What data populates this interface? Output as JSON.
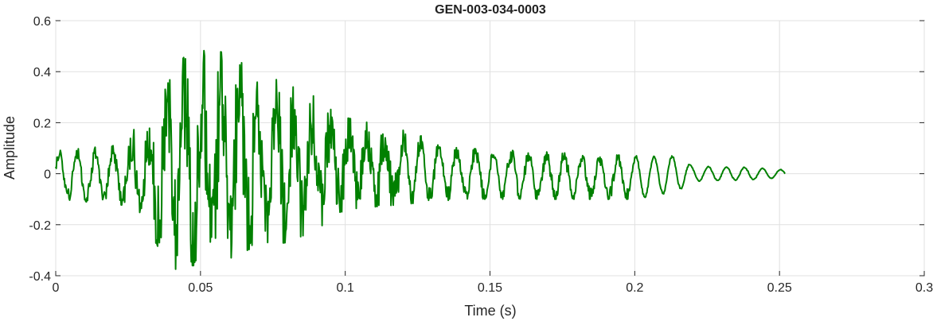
{
  "chart_data": {
    "type": "line",
    "title": "GEN-003-034-0003",
    "xlabel": "Time (s)",
    "ylabel": "Amplitude",
    "xlim": [
      0,
      0.3
    ],
    "ylim": [
      -0.4,
      0.6
    ],
    "xticks": [
      0,
      0.05,
      0.1,
      0.15,
      0.2,
      0.25,
      0.3
    ],
    "xtick_labels": [
      "0",
      "0.05",
      "0.1",
      "0.15",
      "0.2",
      "0.25",
      "0.3"
    ],
    "yticks": [
      -0.4,
      -0.2,
      0,
      0.2,
      0.4,
      0.6
    ],
    "ytick_labels": [
      "-0.4",
      "-0.2",
      "0",
      "0.2",
      "0.4",
      "0.6"
    ],
    "grid": true,
    "line_color": "#008000",
    "series": [
      {
        "oscillation_frequency_hz": 160,
        "duration_s": 0.252,
        "envelope": {
          "t": [
            0,
            0.02,
            0.03,
            0.04,
            0.045,
            0.055,
            0.07,
            0.08,
            0.09,
            0.1,
            0.12,
            0.14,
            0.16,
            0.18,
            0.2,
            0.215,
            0.22,
            0.24,
            0.252
          ],
          "upper": [
            0.09,
            0.11,
            0.2,
            0.38,
            0.47,
            0.49,
            0.4,
            0.35,
            0.3,
            0.22,
            0.17,
            0.1,
            0.09,
            0.08,
            0.07,
            0.07,
            0.03,
            0.025,
            0.015
          ],
          "lower": [
            -0.1,
            -0.12,
            -0.18,
            -0.38,
            -0.36,
            -0.36,
            -0.28,
            -0.27,
            -0.22,
            -0.14,
            -0.12,
            -0.1,
            -0.1,
            -0.1,
            -0.1,
            -0.07,
            -0.03,
            -0.025,
            -0.015
          ]
        }
      }
    ]
  }
}
